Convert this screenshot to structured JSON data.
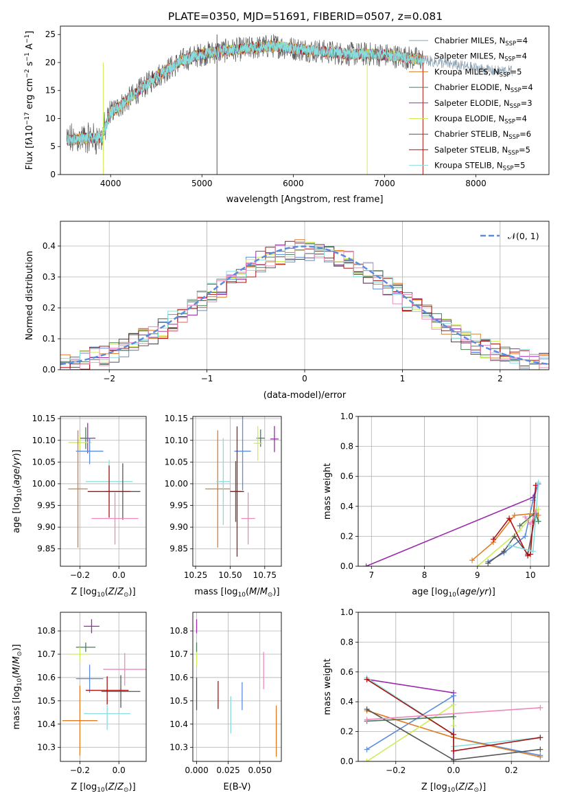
{
  "title": "PLATE=0350, MJD=51691, FIBERID=0507, z=0.081",
  "colors": {
    "Chabrier MILES": "#6a9abf",
    "Salpeter MILES": "#ff7f0e",
    "Kroupa MILES": "#e07b22",
    "Chabrier ELODIE": "#4a7a5a",
    "Salpeter ELODIE": "#9a2aaa",
    "Kroupa ELODIE": "#ccee55",
    "Chabrier STELIB": "#555555",
    "Salpeter STELIB": "#aa1111",
    "Kroupa STELIB": "#88dddd",
    "blue": "#5b8bdd",
    "pink": "#ee88bb"
  },
  "chart_data": [
    {
      "id": "spectrum",
      "type": "line",
      "xlabel": "wavelength [Angstrom, rest frame]",
      "ylabel": "Flux [f_λ 10^-17 erg cm^-2 s^-1 A^-1]",
      "xlim": [
        3450,
        8800
      ],
      "ylim": [
        0,
        26.5
      ],
      "xticks": [
        4000,
        5000,
        6000,
        7000,
        8000
      ],
      "yticks": [
        0,
        5,
        10,
        15,
        20,
        25
      ],
      "legend_position": "right",
      "legend": [
        {
          "name": "Chabrier MILES",
          "nssp": "4"
        },
        {
          "name": "Salpeter MILES",
          "nssp": "4"
        },
        {
          "name": "Kroupa MILES",
          "nssp": "5"
        },
        {
          "name": "Chabrier ELODIE",
          "nssp": "4"
        },
        {
          "name": "Salpeter ELODIE",
          "nssp": "3"
        },
        {
          "name": "Kroupa ELODIE",
          "nssp": "4"
        },
        {
          "name": "Chabrier STELIB",
          "nssp": "6"
        },
        {
          "name": "Salpeter STELIB",
          "nssp": "5"
        },
        {
          "name": "Kroupa STELIB",
          "nssp": "5"
        }
      ],
      "continuum": {
        "x": [
          3500,
          3700,
          3900,
          4000,
          4200,
          4500,
          4800,
          5000,
          5200,
          5500,
          5800,
          6000,
          6300,
          6600,
          6900,
          7200,
          7400,
          7600,
          7800,
          8000,
          8200,
          8400
        ],
        "y": [
          6,
          6.5,
          6.5,
          11,
          13.5,
          17.5,
          20.5,
          21.5,
          22,
          22.5,
          23,
          22.5,
          22,
          21.5,
          21.5,
          21,
          20.5,
          20,
          19.5,
          19,
          18.5,
          18.5
        ]
      }
    },
    {
      "id": "residuals",
      "type": "line",
      "xlabel": "(data-model)/error",
      "ylabel": "Normed distribution",
      "xlim": [
        -2.5,
        2.5
      ],
      "ylim": [
        0,
        0.48
      ],
      "xticks": [
        -2,
        -1,
        0,
        1,
        2
      ],
      "yticks": [
        0,
        0.1,
        0.2,
        0.3,
        0.4
      ],
      "legend_position": "top-right",
      "series": [
        {
          "name": "𝒩(0, 1)",
          "mu": 0,
          "sigma": 1
        }
      ]
    },
    {
      "id": "age-vs-Z",
      "type": "scatter",
      "xlabel": "Z [log10(Z/Z⊙)]",
      "ylabel": "age  [log10(age/yr)]",
      "xlim": [
        -0.3,
        0.14
      ],
      "ylim": [
        9.81,
        10.155
      ],
      "xticks": [
        -0.2,
        0.0
      ],
      "yticks": [
        9.85,
        9.9,
        9.95,
        10.0,
        10.05,
        10.1,
        10.15
      ],
      "points": [
        {
          "c": "#9a2aaa",
          "x": -0.16,
          "y": 10.105,
          "ex": 0.04,
          "ey": 0.035
        },
        {
          "c": "#4a7a5a",
          "x": -0.17,
          "y": 10.105,
          "ex": 0.03,
          "ey": 0.025
        },
        {
          "c": "#ccee55",
          "x": -0.2,
          "y": 10.095,
          "ex": 0.06,
          "ey": 0.015
        },
        {
          "c": "#5b8bdd",
          "x": -0.15,
          "y": 10.075,
          "ex": 0.07,
          "ey": 0.03
        },
        {
          "c": "#e07b22",
          "x": -0.21,
          "y": 9.988,
          "ex": 0.05,
          "ey": 0.135
        },
        {
          "c": "#88dddd",
          "x": -0.05,
          "y": 10.005,
          "ex": 0.12,
          "ey": 0.05
        },
        {
          "c": "#555555",
          "x": 0.02,
          "y": 9.982,
          "ex": 0.09,
          "ey": 0.065
        },
        {
          "c": "#aa1111",
          "x": -0.05,
          "y": 9.982,
          "ex": 0.11,
          "ey": 0.06
        },
        {
          "c": "#ee88bb",
          "x": -0.02,
          "y": 9.92,
          "ex": 0.12,
          "ey": 0.06
        }
      ]
    },
    {
      "id": "age-vs-mass",
      "type": "scatter",
      "xlabel": "mass [log10(M/M⊙)]",
      "ylabel": "",
      "xlim": [
        10.23,
        10.87
      ],
      "ylim": [
        9.81,
        10.155
      ],
      "xticks": [
        10.25,
        10.5,
        10.75
      ],
      "yticks": [
        9.85,
        9.9,
        9.95,
        10.0,
        10.05,
        10.1,
        10.15
      ],
      "points": [
        {
          "c": "#9a2aaa",
          "x": 10.82,
          "y": 10.103,
          "ex": 0.03,
          "ey": 0.03
        },
        {
          "c": "#4a7a5a",
          "x": 10.72,
          "y": 10.105,
          "ex": 0.03,
          "ey": 0.02
        },
        {
          "c": "#ccee55",
          "x": 10.7,
          "y": 10.093,
          "ex": 0.03,
          "ey": 0.04
        },
        {
          "c": "#5b8bdd",
          "x": 10.59,
          "y": 10.075,
          "ex": 0.06,
          "ey": 0.09
        },
        {
          "c": "#e07b22",
          "x": 10.41,
          "y": 9.988,
          "ex": 0.09,
          "ey": 0.135
        },
        {
          "c": "#88dddd",
          "x": 10.45,
          "y": 10.005,
          "ex": 0.05,
          "ey": 0.1
        },
        {
          "c": "#555555",
          "x": 10.54,
          "y": 9.982,
          "ex": 0.04,
          "ey": 0.07
        },
        {
          "c": "#aa1111",
          "x": 10.55,
          "y": 9.982,
          "ex": 0.05,
          "ey": 0.15
        },
        {
          "c": "#ee88bb",
          "x": 10.63,
          "y": 9.92,
          "ex": 0.05,
          "ey": 0.06
        }
      ]
    },
    {
      "id": "weight-vs-age",
      "type": "line",
      "xlabel": "age  [log10(age/yr)]",
      "ylabel": "mass weight",
      "xlim": [
        6.75,
        10.35
      ],
      "ylim": [
        0,
        1.0
      ],
      "xticks": [
        7,
        8,
        9,
        10
      ],
      "yticks": [
        0,
        0.2,
        0.4,
        0.6,
        0.8,
        1.0
      ],
      "series": [
        {
          "c": "#9a2aaa",
          "x": [
            6.9,
            10.05,
            10.15
          ],
          "y": [
            0.0,
            0.46,
            0.55
          ]
        },
        {
          "c": "#5b8bdd",
          "x": [
            9.2,
            9.5,
            9.9,
            10.05,
            10.15
          ],
          "y": [
            0.03,
            0.09,
            0.2,
            0.44,
            0.55
          ]
        },
        {
          "c": "#e07b22",
          "x": [
            8.9,
            9.3,
            9.7,
            10.0,
            10.15
          ],
          "y": [
            0.04,
            0.16,
            0.34,
            0.35,
            0.34
          ]
        },
        {
          "c": "#ccee55",
          "x": [
            9.0,
            9.8,
            10.1,
            10.15
          ],
          "y": [
            0.0,
            0.24,
            0.37,
            0.38
          ]
        },
        {
          "c": "#555555",
          "x": [
            9.2,
            9.5,
            9.7,
            9.95,
            10.1,
            10.15
          ],
          "y": [
            0.02,
            0.1,
            0.2,
            0.08,
            0.35,
            0.3
          ]
        },
        {
          "c": "#aa1111",
          "x": [
            9.3,
            9.6,
            9.95,
            10.0,
            10.1
          ],
          "y": [
            0.18,
            0.32,
            0.07,
            0.08,
            0.54
          ]
        },
        {
          "c": "#88dddd",
          "x": [
            9.6,
            10.05,
            10.15
          ],
          "y": [
            0.14,
            0.1,
            0.56
          ]
        },
        {
          "c": "#4a7a5a",
          "x": [
            9.8,
            10.1,
            10.15
          ],
          "y": [
            0.27,
            0.36,
            0.3
          ]
        },
        {
          "c": "#ee88bb",
          "x": [
            9.9,
            10.0,
            10.1
          ],
          "y": [
            0.33,
            0.28,
            0.36
          ]
        }
      ]
    },
    {
      "id": "mass-vs-Z",
      "type": "scatter",
      "xlabel": "Z [log10(Z/Z⊙)]",
      "ylabel": "mass [log10(M/M⊙)]",
      "xlim": [
        -0.3,
        0.14
      ],
      "ylim": [
        10.24,
        10.88
      ],
      "xticks": [
        -0.2,
        0.0
      ],
      "yticks": [
        10.3,
        10.4,
        10.5,
        10.6,
        10.7,
        10.8
      ],
      "points": [
        {
          "c": "#9a2aaa",
          "x": -0.14,
          "y": 10.82,
          "ex": 0.04,
          "ey": 0.03
        },
        {
          "c": "#4a7a5a",
          "x": -0.17,
          "y": 10.73,
          "ex": 0.05,
          "ey": 0.02
        },
        {
          "c": "#ccee55",
          "x": -0.2,
          "y": 10.7,
          "ex": 0.05,
          "ey": 0.03
        },
        {
          "c": "#5b8bdd",
          "x": -0.15,
          "y": 10.595,
          "ex": 0.07,
          "ey": 0.06
        },
        {
          "c": "#e07b22",
          "x": -0.2,
          "y": 10.415,
          "ex": 0.09,
          "ey": 0.15
        },
        {
          "c": "#88dddd",
          "x": -0.06,
          "y": 10.445,
          "ex": 0.12,
          "ey": 0.07
        },
        {
          "c": "#555555",
          "x": 0.01,
          "y": 10.54,
          "ex": 0.1,
          "ey": 0.07
        },
        {
          "c": "#aa1111",
          "x": -0.06,
          "y": 10.545,
          "ex": 0.11,
          "ey": 0.06
        },
        {
          "c": "#ee88bb",
          "x": 0.03,
          "y": 10.635,
          "ex": 0.11,
          "ey": 0.07
        }
      ]
    },
    {
      "id": "mass-vs-EBV",
      "type": "scatter",
      "xlabel": "E(B-V)",
      "ylabel": "",
      "xlim": [
        -0.003,
        0.067
      ],
      "ylim": [
        10.24,
        10.88
      ],
      "xticks": [
        0.0,
        0.025,
        0.05
      ],
      "yticks": [
        10.3,
        10.4,
        10.5,
        10.6,
        10.7,
        10.8
      ],
      "points": [
        {
          "c": "#9a2aaa",
          "x": 0.0,
          "y": 10.82,
          "ex": 0,
          "ey": 0.03
        },
        {
          "c": "#4a7a5a",
          "x": 0.0,
          "y": 10.73,
          "ex": 0,
          "ey": 0.02
        },
        {
          "c": "#ccee55",
          "x": 0.0,
          "y": 10.68,
          "ex": 0,
          "ey": 0.03
        },
        {
          "c": "#555555",
          "x": 0.0,
          "y": 10.53,
          "ex": 0,
          "ey": 0.07
        },
        {
          "c": "#aa1111",
          "x": 0.017,
          "y": 10.525,
          "ex": 0,
          "ey": 0.06
        },
        {
          "c": "#88dddd",
          "x": 0.027,
          "y": 10.44,
          "ex": 0,
          "ey": 0.08
        },
        {
          "c": "#5b8bdd",
          "x": 0.036,
          "y": 10.52,
          "ex": 0,
          "ey": 0.06
        },
        {
          "c": "#ee88bb",
          "x": 0.053,
          "y": 10.63,
          "ex": 0,
          "ey": 0.08
        },
        {
          "c": "#e07b22",
          "x": 0.063,
          "y": 10.37,
          "ex": 0,
          "ey": 0.11
        }
      ]
    },
    {
      "id": "weight-vs-Z",
      "type": "line",
      "xlabel": "Z [log10(Z/Z⊙)]",
      "ylabel": "mass weight",
      "xlim": [
        -0.33,
        0.33
      ],
      "ylim": [
        0,
        1.0
      ],
      "xticks": [
        -0.2,
        0.0,
        0.2
      ],
      "yticks": [
        0,
        0.2,
        0.4,
        0.6,
        0.8,
        1.0
      ],
      "series": [
        {
          "c": "#9a2aaa",
          "x": [
            -0.3,
            0.0,
            0.0
          ],
          "y": [
            0.55,
            0.46,
            0.0
          ]
        },
        {
          "c": "#88dddd",
          "x": [
            -0.3,
            0.0,
            0.0,
            0.3
          ],
          "y": [
            0.56,
            0.18,
            0.1,
            0.16
          ]
        },
        {
          "c": "#5b8bdd",
          "x": [
            -0.3,
            0.0,
            0.0,
            0.3
          ],
          "y": [
            0.08,
            0.44,
            0.16,
            0.04
          ]
        },
        {
          "c": "#e07b22",
          "x": [
            -0.3,
            0.0,
            0.3
          ],
          "y": [
            0.34,
            0.16,
            0.03
          ]
        },
        {
          "c": "#ccee55",
          "x": [
            -0.3,
            0.0,
            0.0
          ],
          "y": [
            0.0,
            0.38,
            0.24
          ]
        },
        {
          "c": "#555555",
          "x": [
            -0.3,
            0.0,
            0.3
          ],
          "y": [
            0.35,
            0.01,
            0.08
          ]
        },
        {
          "c": "#aa1111",
          "x": [
            -0.3,
            0.0,
            0.0,
            0.3
          ],
          "y": [
            0.55,
            0.18,
            0.07,
            0.16
          ]
        },
        {
          "c": "#4a7a5a",
          "x": [
            -0.3,
            0.0
          ],
          "y": [
            0.27,
            0.3
          ]
        },
        {
          "c": "#ee88bb",
          "x": [
            -0.3,
            0.3
          ],
          "y": [
            0.28,
            0.36
          ]
        }
      ]
    }
  ]
}
